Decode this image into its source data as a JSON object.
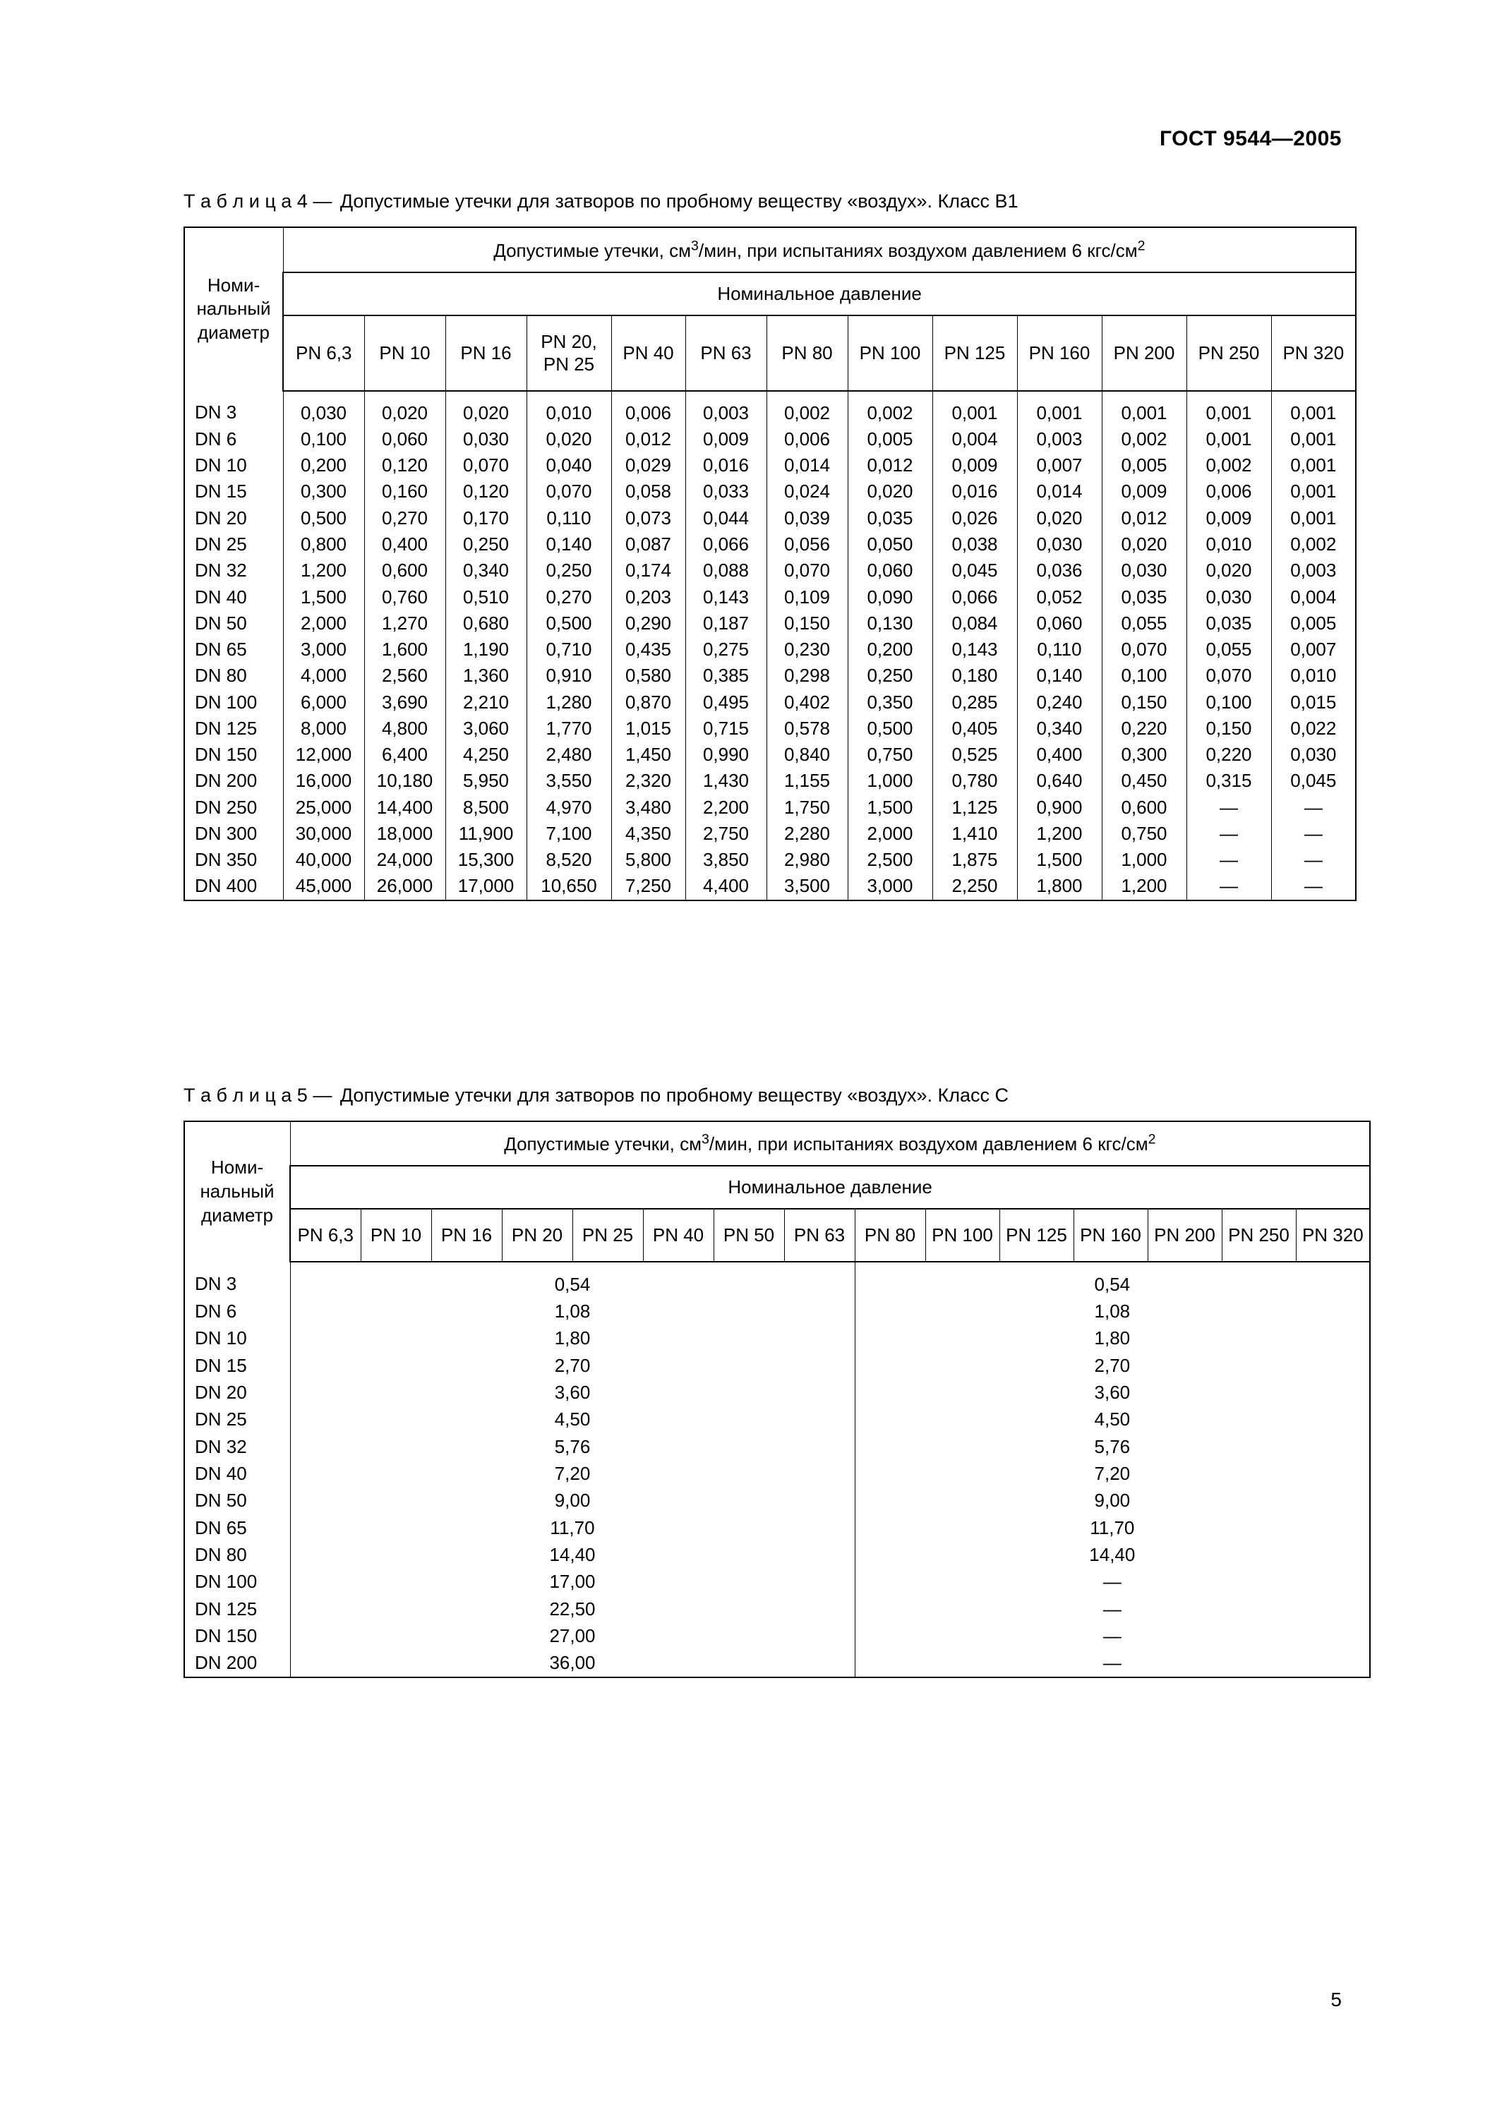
{
  "document_id": "ГОСТ 9544—2005",
  "page_number": "5",
  "table4": {
    "caption_prefix": "Т а б л и ц а  4 —",
    "caption_text": "Допустимые утечки для затворов по пробному веществу «воздух». Класс В1",
    "super_header": "Допустимые утечки, см³/мин, при испытаниях воздухом давлением 6 кгс/см²",
    "nominal_pressure_label": "Номинальное давление",
    "row_header": "Номи-\nнальный\nдиаметр",
    "pn_columns": [
      "PN 6,3",
      "PN 10",
      "PN 16",
      "PN 20,\nPN 25",
      "PN 40",
      "PN 63",
      "PN 80",
      "PN 100",
      "PN 125",
      "PN 160",
      "PN 200",
      "PN 250",
      "PN 320"
    ],
    "rows": [
      {
        "dn": "DN 3",
        "v": [
          "0,030",
          "0,020",
          "0,020",
          "0,010",
          "0,006",
          "0,003",
          "0,002",
          "0,002",
          "0,001",
          "0,001",
          "0,001",
          "0,001",
          "0,001"
        ]
      },
      {
        "dn": "DN 6",
        "v": [
          "0,100",
          "0,060",
          "0,030",
          "0,020",
          "0,012",
          "0,009",
          "0,006",
          "0,005",
          "0,004",
          "0,003",
          "0,002",
          "0,001",
          "0,001"
        ]
      },
      {
        "dn": "DN 10",
        "v": [
          "0,200",
          "0,120",
          "0,070",
          "0,040",
          "0,029",
          "0,016",
          "0,014",
          "0,012",
          "0,009",
          "0,007",
          "0,005",
          "0,002",
          "0,001"
        ]
      },
      {
        "dn": "DN 15",
        "v": [
          "0,300",
          "0,160",
          "0,120",
          "0,070",
          "0,058",
          "0,033",
          "0,024",
          "0,020",
          "0,016",
          "0,014",
          "0,009",
          "0,006",
          "0,001"
        ]
      },
      {
        "dn": "DN 20",
        "v": [
          "0,500",
          "0,270",
          "0,170",
          "0,110",
          "0,073",
          "0,044",
          "0,039",
          "0,035",
          "0,026",
          "0,020",
          "0,012",
          "0,009",
          "0,001"
        ]
      },
      {
        "dn": "DN 25",
        "v": [
          "0,800",
          "0,400",
          "0,250",
          "0,140",
          "0,087",
          "0,066",
          "0,056",
          "0,050",
          "0,038",
          "0,030",
          "0,020",
          "0,010",
          "0,002"
        ]
      },
      {
        "dn": "DN 32",
        "v": [
          "1,200",
          "0,600",
          "0,340",
          "0,250",
          "0,174",
          "0,088",
          "0,070",
          "0,060",
          "0,045",
          "0,036",
          "0,030",
          "0,020",
          "0,003"
        ]
      },
      {
        "dn": "DN 40",
        "v": [
          "1,500",
          "0,760",
          "0,510",
          "0,270",
          "0,203",
          "0,143",
          "0,109",
          "0,090",
          "0,066",
          "0,052",
          "0,035",
          "0,030",
          "0,004"
        ]
      },
      {
        "dn": "DN 50",
        "v": [
          "2,000",
          "1,270",
          "0,680",
          "0,500",
          "0,290",
          "0,187",
          "0,150",
          "0,130",
          "0,084",
          "0,060",
          "0,055",
          "0,035",
          "0,005"
        ]
      },
      {
        "dn": "DN 65",
        "v": [
          "3,000",
          "1,600",
          "1,190",
          "0,710",
          "0,435",
          "0,275",
          "0,230",
          "0,200",
          "0,143",
          "0,110",
          "0,070",
          "0,055",
          "0,007"
        ]
      },
      {
        "dn": "DN 80",
        "v": [
          "4,000",
          "2,560",
          "1,360",
          "0,910",
          "0,580",
          "0,385",
          "0,298",
          "0,250",
          "0,180",
          "0,140",
          "0,100",
          "0,070",
          "0,010"
        ]
      },
      {
        "dn": "DN 100",
        "v": [
          "6,000",
          "3,690",
          "2,210",
          "1,280",
          "0,870",
          "0,495",
          "0,402",
          "0,350",
          "0,285",
          "0,240",
          "0,150",
          "0,100",
          "0,015"
        ]
      },
      {
        "dn": "DN 125",
        "v": [
          "8,000",
          "4,800",
          "3,060",
          "1,770",
          "1,015",
          "0,715",
          "0,578",
          "0,500",
          "0,405",
          "0,340",
          "0,220",
          "0,150",
          "0,022"
        ]
      },
      {
        "dn": "DN 150",
        "v": [
          "12,000",
          "6,400",
          "4,250",
          "2,480",
          "1,450",
          "0,990",
          "0,840",
          "0,750",
          "0,525",
          "0,400",
          "0,300",
          "0,220",
          "0,030"
        ]
      },
      {
        "dn": "DN 200",
        "v": [
          "16,000",
          "10,180",
          "5,950",
          "3,550",
          "2,320",
          "1,430",
          "1,155",
          "1,000",
          "0,780",
          "0,640",
          "0,450",
          "0,315",
          "0,045"
        ]
      },
      {
        "dn": "DN 250",
        "v": [
          "25,000",
          "14,400",
          "8,500",
          "4,970",
          "3,480",
          "2,200",
          "1,750",
          "1,500",
          "1,125",
          "0,900",
          "0,600",
          "—",
          "—"
        ]
      },
      {
        "dn": "DN 300",
        "v": [
          "30,000",
          "18,000",
          "11,900",
          "7,100",
          "4,350",
          "2,750",
          "2,280",
          "2,000",
          "1,410",
          "1,200",
          "0,750",
          "—",
          "—"
        ]
      },
      {
        "dn": "DN 350",
        "v": [
          "40,000",
          "24,000",
          "15,300",
          "8,520",
          "5,800",
          "3,850",
          "2,980",
          "2,500",
          "1,875",
          "1,500",
          "1,000",
          "—",
          "—"
        ]
      },
      {
        "dn": "DN 400",
        "v": [
          "45,000",
          "26,000",
          "17,000",
          "10,650",
          "7,250",
          "4,400",
          "3,500",
          "3,000",
          "2,250",
          "1,800",
          "1,200",
          "—",
          "—"
        ]
      }
    ]
  },
  "table5": {
    "caption_prefix": "Т а б л и ц а  5 —",
    "caption_text": "Допустимые утечки для затворов по пробному веществу «воздух». Класс С",
    "super_header": "Допустимые утечки, см³/мин, при испытаниях воздухом давлением 6 кгс/см²",
    "nominal_pressure_label": "Номинальное давление",
    "row_header": "Номи-\nнальный\nдиаметр",
    "pn_columns_left": [
      "PN 6,3",
      "PN 10",
      "PN 16",
      "PN 20",
      "PN 25",
      "PN 40",
      "PN 50",
      "PN 63"
    ],
    "pn_columns_right": [
      "PN 80",
      "PN 100",
      "PN 125",
      "PN 160",
      "PN 200",
      "PN 250",
      "PN 320"
    ],
    "rows": [
      {
        "dn": "DN 3",
        "l": "0,54",
        "r": "0,54"
      },
      {
        "dn": "DN 6",
        "l": "1,08",
        "r": "1,08"
      },
      {
        "dn": "DN 10",
        "l": "1,80",
        "r": "1,80"
      },
      {
        "dn": "DN 15",
        "l": "2,70",
        "r": "2,70"
      },
      {
        "dn": "DN 20",
        "l": "3,60",
        "r": "3,60"
      },
      {
        "dn": "DN 25",
        "l": "4,50",
        "r": "4,50"
      },
      {
        "dn": "DN 32",
        "l": "5,76",
        "r": "5,76"
      },
      {
        "dn": "DN 40",
        "l": "7,20",
        "r": "7,20"
      },
      {
        "dn": "DN 50",
        "l": "9,00",
        "r": "9,00"
      },
      {
        "dn": "DN 65",
        "l": "11,70",
        "r": "11,70"
      },
      {
        "dn": "DN 80",
        "l": "14,40",
        "r": "14,40"
      },
      {
        "dn": "DN 100",
        "l": "17,00",
        "r": "—"
      },
      {
        "dn": "DN 125",
        "l": "22,50",
        "r": "—"
      },
      {
        "dn": "DN 150",
        "l": "27,00",
        "r": "—"
      },
      {
        "dn": "DN 200",
        "l": "36,00",
        "r": "—"
      }
    ]
  }
}
